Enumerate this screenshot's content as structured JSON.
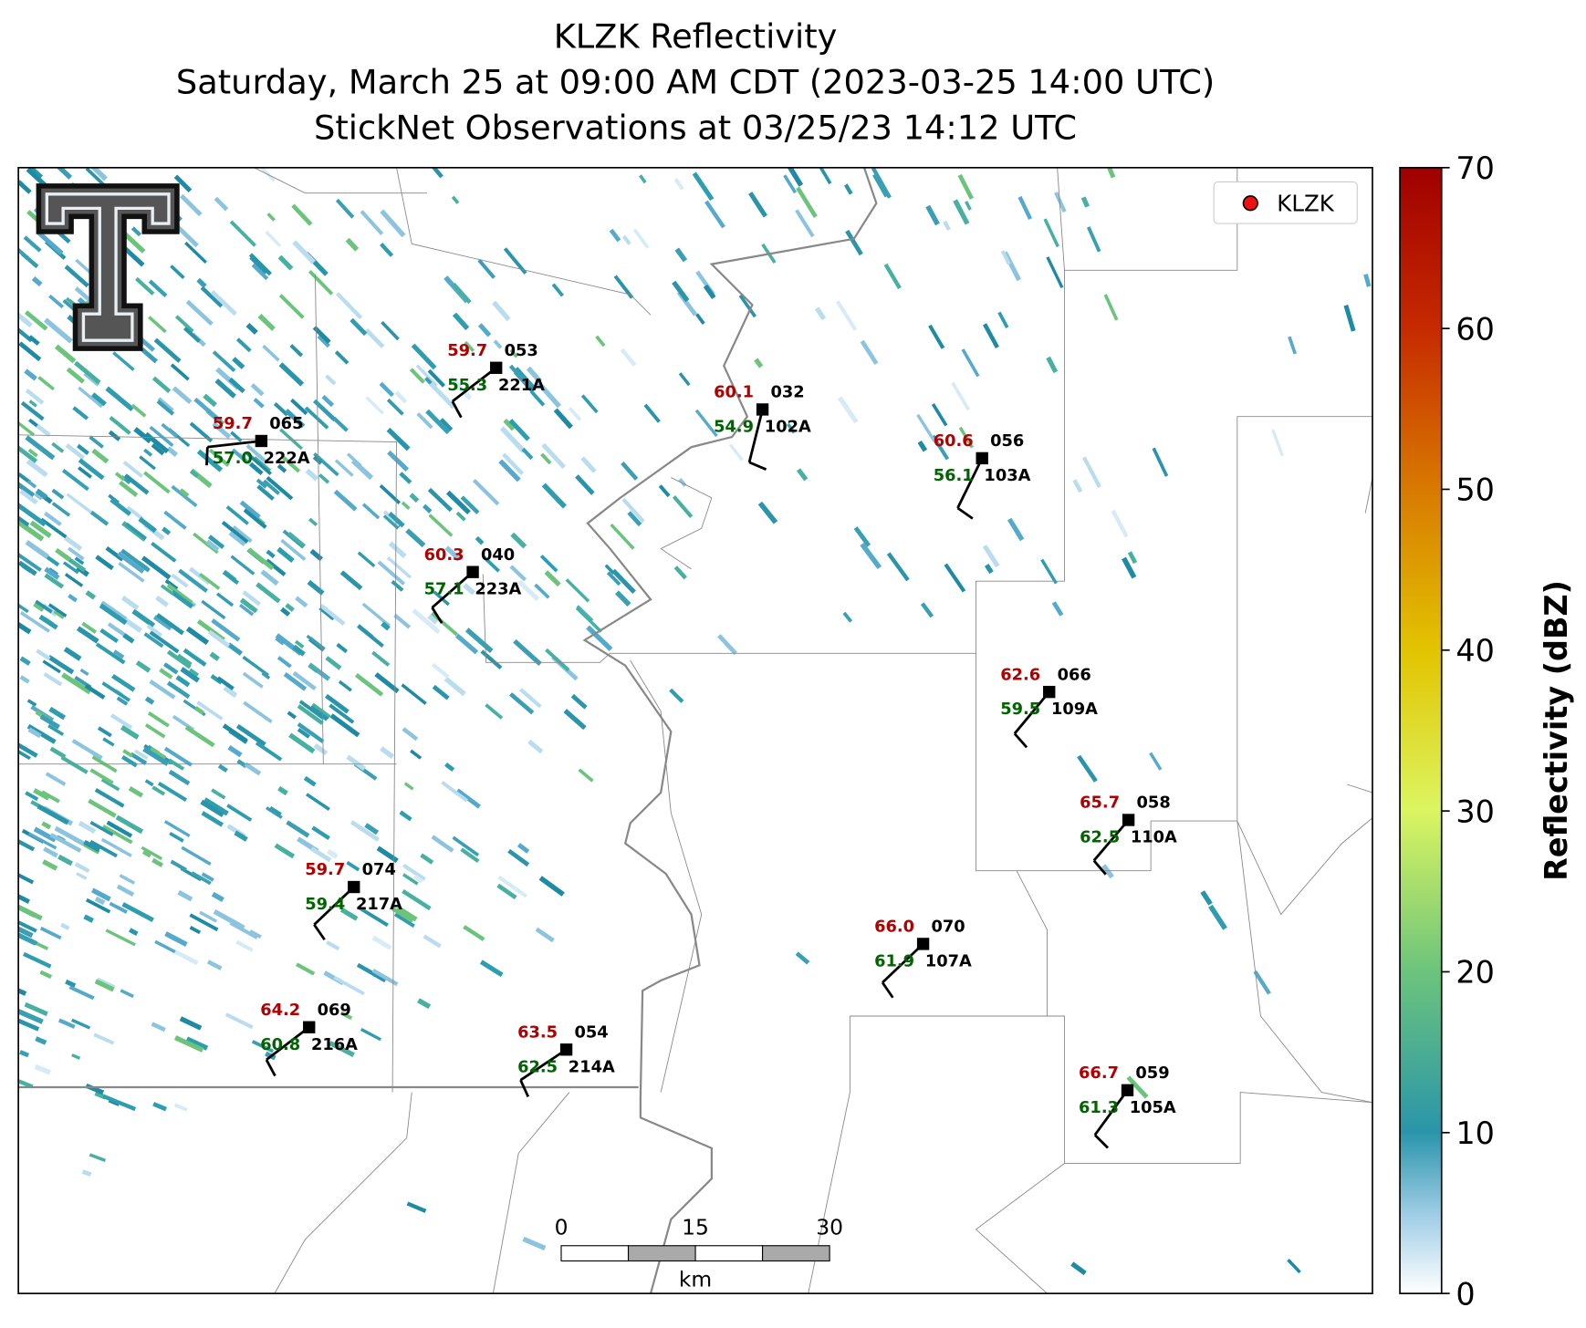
{
  "title": [
    "KLZK Reflectivity",
    "Saturday, March 25 at 09:00 AM CDT (2023-03-25 14:00 UTC)",
    "StickNet Observations at 03/25/23 14:12 UTC"
  ],
  "legend": "KLZK",
  "colorbar": {
    "label": "Reflectivity (dBZ)",
    "lim": [
      0,
      70
    ],
    "ticks": [
      0,
      10,
      20,
      30,
      40,
      50,
      60,
      70
    ]
  },
  "scalebar": {
    "ticks": [
      0,
      15,
      30
    ],
    "unit": "km"
  },
  "stations": [
    {
      "id": "221A",
      "temp": "59.7",
      "dew": "55.3",
      "pressure": "053"
    },
    {
      "id": "222A",
      "temp": "59.7",
      "dew": "57.0",
      "pressure": "065"
    },
    {
      "id": "102A",
      "temp": "60.1",
      "dew": "54.9",
      "pressure": "032"
    },
    {
      "id": "103A",
      "temp": "60.6",
      "dew": "56.1",
      "pressure": "056"
    },
    {
      "id": "223A",
      "temp": "60.3",
      "dew": "57.1",
      "pressure": "040"
    },
    {
      "id": "109A",
      "temp": "62.6",
      "dew": "59.5",
      "pressure": "066"
    },
    {
      "id": "110A",
      "temp": "65.7",
      "dew": "62.5",
      "pressure": "058"
    },
    {
      "id": "217A",
      "temp": "59.7",
      "dew": "59.4",
      "pressure": "074"
    },
    {
      "id": "107A",
      "temp": "66.0",
      "dew": "61.9",
      "pressure": "070"
    },
    {
      "id": "216A",
      "temp": "64.2",
      "dew": "60.8",
      "pressure": "069"
    },
    {
      "id": "214A",
      "temp": "63.5",
      "dew": "62.5",
      "pressure": "054"
    },
    {
      "id": "105A",
      "temp": "66.7",
      "dew": "61.3",
      "pressure": "059"
    }
  ]
}
